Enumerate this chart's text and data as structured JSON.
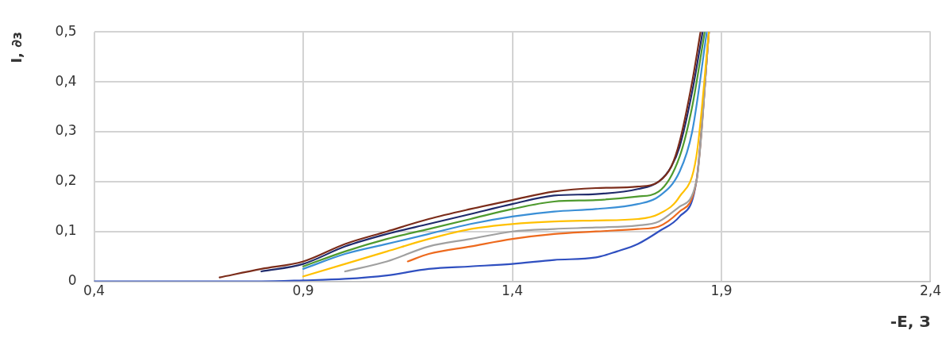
{
  "chart_data": {
    "type": "line",
    "xlabel": "-E, З",
    "ylabel": "I, ∂ɜ",
    "xlim": [
      0.4,
      2.4
    ],
    "xticks": [
      {
        "value": 0.4,
        "label": "0,4"
      },
      {
        "value": 0.9,
        "label": "0,9"
      },
      {
        "value": 1.4,
        "label": "1,4"
      },
      {
        "value": 1.9,
        "label": "1,9"
      },
      {
        "value": 2.4,
        "label": "2,4"
      }
    ],
    "ylim": [
      0,
      0.5
    ],
    "yticks": [
      {
        "value": 0,
        "label": "0"
      },
      {
        "value": 0.1,
        "label": "0,1"
      },
      {
        "value": 0.2,
        "label": "0,2"
      },
      {
        "value": 0.3,
        "label": "0,3"
      },
      {
        "value": 0.4,
        "label": "0,4"
      },
      {
        "value": 0.5,
        "label": "0,5"
      }
    ],
    "grid": true,
    "legend": false,
    "marker": "none",
    "line_style": "solid",
    "series": [
      {
        "color": "#7b2c1a",
        "x": [
          0.7,
          0.8,
          0.9,
          1.0,
          1.1,
          1.2,
          1.3,
          1.4,
          1.5,
          1.6,
          1.7,
          1.75,
          1.78,
          1.8,
          1.83,
          1.85
        ],
        "values": [
          0.008,
          0.025,
          0.04,
          0.075,
          0.1,
          0.125,
          0.145,
          0.163,
          0.18,
          0.187,
          0.19,
          0.2,
          0.23,
          0.28,
          0.4,
          0.5
        ]
      },
      {
        "color": "#1f2a6b",
        "x": [
          0.8,
          0.9,
          1.0,
          1.1,
          1.2,
          1.3,
          1.4,
          1.5,
          1.6,
          1.7,
          1.75,
          1.78,
          1.8,
          1.83,
          1.855
        ],
        "values": [
          0.02,
          0.035,
          0.07,
          0.095,
          0.115,
          0.135,
          0.155,
          0.172,
          0.175,
          0.185,
          0.2,
          0.23,
          0.27,
          0.38,
          0.5
        ]
      },
      {
        "color": "#4e9a2e",
        "x": [
          0.9,
          1.0,
          1.1,
          1.2,
          1.3,
          1.4,
          1.5,
          1.6,
          1.7,
          1.75,
          1.8,
          1.83,
          1.86
        ],
        "values": [
          0.03,
          0.06,
          0.085,
          0.105,
          0.125,
          0.145,
          0.16,
          0.163,
          0.17,
          0.18,
          0.25,
          0.35,
          0.5
        ]
      },
      {
        "color": "#3a8fd6",
        "x": [
          0.9,
          1.0,
          1.1,
          1.2,
          1.3,
          1.4,
          1.5,
          1.6,
          1.7,
          1.75,
          1.8,
          1.83,
          1.865
        ],
        "values": [
          0.025,
          0.055,
          0.075,
          0.095,
          0.115,
          0.13,
          0.14,
          0.145,
          0.155,
          0.17,
          0.22,
          0.3,
          0.5
        ]
      },
      {
        "color": "#ffc000",
        "x": [
          0.9,
          1.0,
          1.1,
          1.2,
          1.3,
          1.4,
          1.5,
          1.6,
          1.7,
          1.75,
          1.8,
          1.84,
          1.87
        ],
        "values": [
          0.01,
          0.035,
          0.06,
          0.085,
          0.105,
          0.115,
          0.12,
          0.122,
          0.125,
          0.135,
          0.17,
          0.25,
          0.5
        ]
      },
      {
        "color": "#a0a0a0",
        "x": [
          1.0,
          1.1,
          1.2,
          1.3,
          1.4,
          1.5,
          1.6,
          1.7,
          1.75,
          1.8,
          1.84,
          1.87
        ],
        "values": [
          0.02,
          0.04,
          0.07,
          0.085,
          0.1,
          0.105,
          0.108,
          0.112,
          0.12,
          0.15,
          0.2,
          0.5
        ]
      },
      {
        "color": "#ed6a1e",
        "x": [
          1.15,
          1.2,
          1.3,
          1.4,
          1.5,
          1.6,
          1.7,
          1.75,
          1.8,
          1.84,
          1.87
        ],
        "values": [
          0.04,
          0.055,
          0.07,
          0.085,
          0.095,
          0.1,
          0.105,
          0.11,
          0.14,
          0.2,
          0.5
        ]
      },
      {
        "color": "#2f4fc0",
        "x": [
          0.4,
          0.5,
          0.6,
          0.7,
          0.8,
          0.9,
          1.0,
          1.1,
          1.2,
          1.3,
          1.4,
          1.5,
          1.6,
          1.65,
          1.7,
          1.75,
          1.8,
          1.84,
          1.87
        ],
        "values": [
          0,
          0,
          0,
          0,
          0,
          0.002,
          0.005,
          0.012,
          0.025,
          0.03,
          0.035,
          0.043,
          0.048,
          0.06,
          0.075,
          0.1,
          0.13,
          0.2,
          0.5
        ]
      }
    ]
  }
}
